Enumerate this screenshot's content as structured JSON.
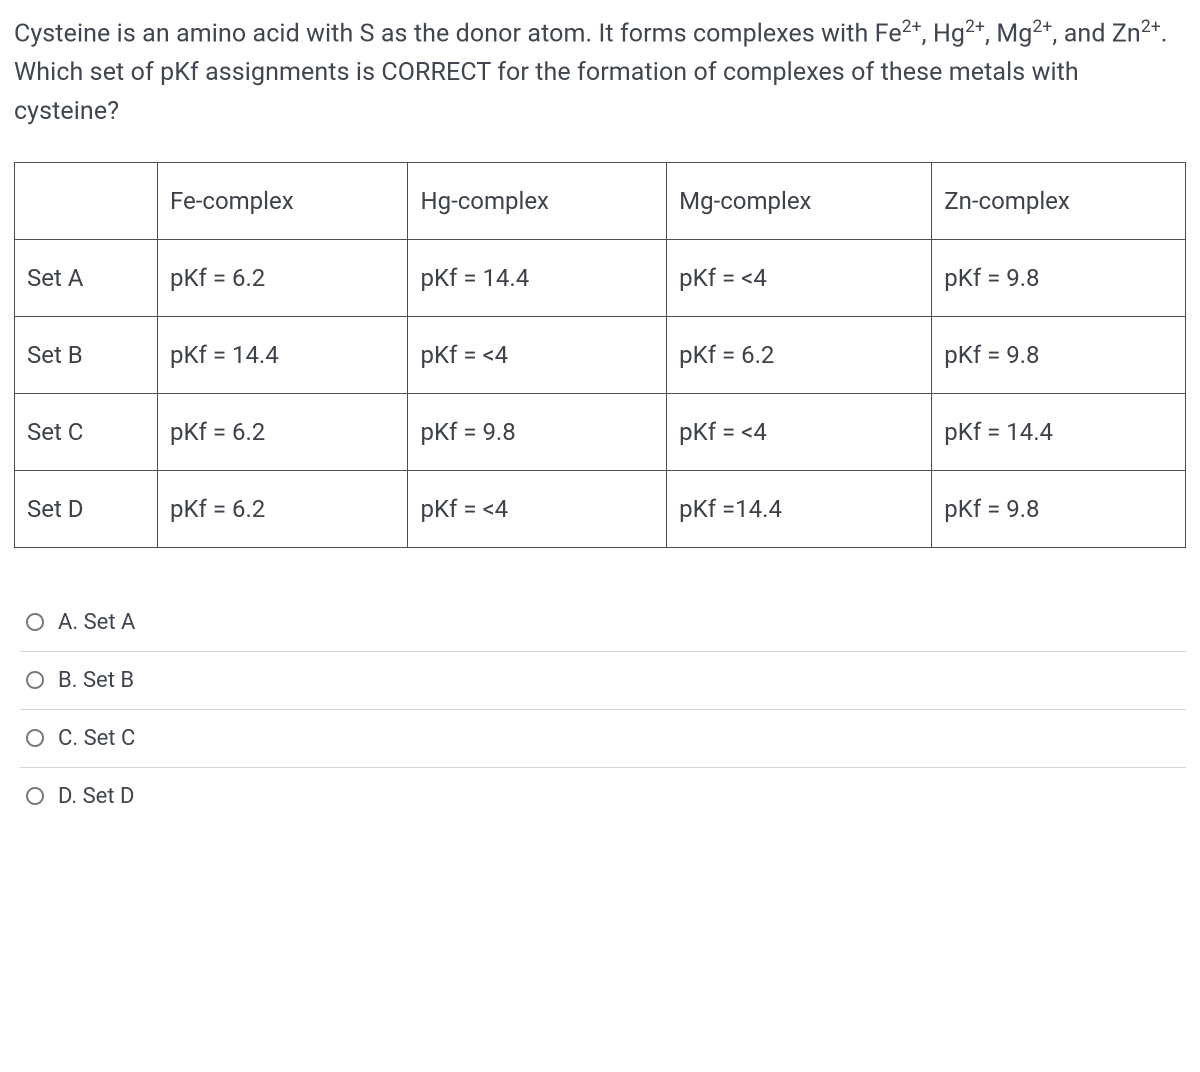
{
  "question": {
    "p1a": "Cysteine is an amino acid with S as the donor atom. It forms complexes with Fe",
    "p1b": ", Hg",
    "p1c": ", Mg",
    "p1d": ", and Zn",
    "p1e": ". Which set of pKf assignments is CORRECT for the formation of complexes of these metals with cysteine?",
    "sup": "2+"
  },
  "table": {
    "headers": [
      "",
      "Fe-complex",
      "Hg-complex",
      "Mg-complex",
      "Zn-complex"
    ],
    "rows": [
      {
        "label": "Set A",
        "cells": [
          "pKf = 6.2",
          "pKf = 14.4",
          "pKf = <4",
          "pKf = 9.8"
        ]
      },
      {
        "label": "Set B",
        "cells": [
          "pKf = 14.4",
          "pKf = <4",
          "pKf = 6.2",
          "pKf = 9.8"
        ]
      },
      {
        "label": "Set C",
        "cells": [
          "pKf = 6.2",
          "pKf = 9.8",
          "pKf = <4",
          "pKf = 14.4"
        ]
      },
      {
        "label": "Set D",
        "cells": [
          "pKf = 6.2",
          "pKf = <4",
          "pKf =14.4",
          "pKf = 9.8"
        ]
      }
    ]
  },
  "options": [
    {
      "label": "A. Set A"
    },
    {
      "label": "B. Set B"
    },
    {
      "label": "C. Set C"
    },
    {
      "label": "D. Set D"
    }
  ]
}
